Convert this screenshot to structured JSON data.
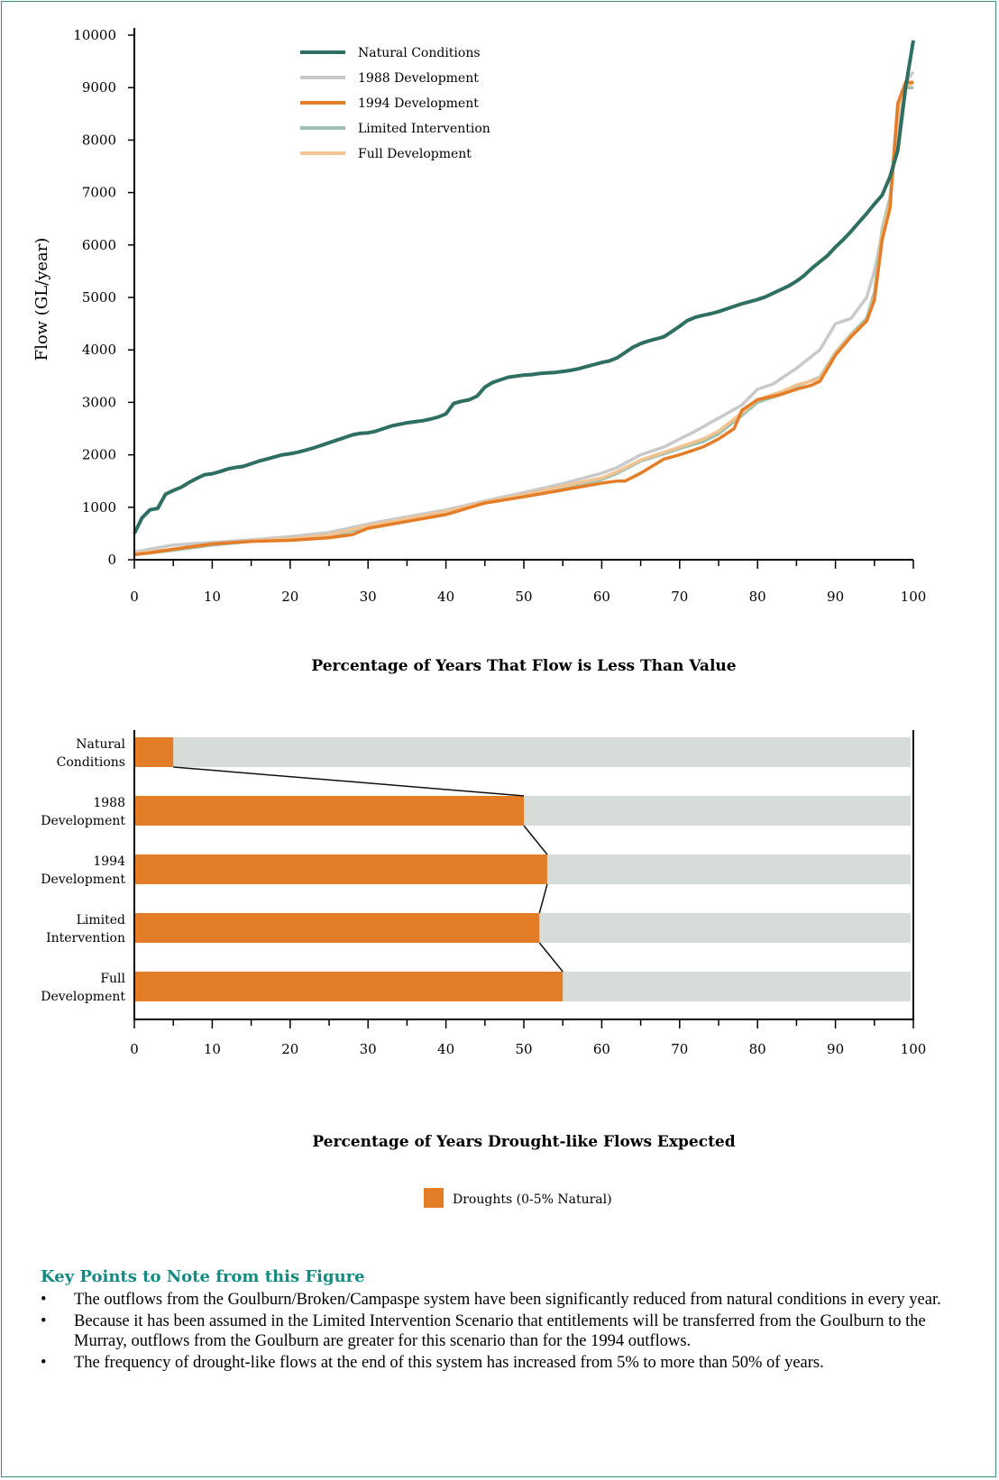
{
  "colors": {
    "natural": "#2e6f62",
    "dev1988": "#c9c9c9",
    "dev1994": "#e47d27",
    "limited": "#9fc2b0",
    "full": "#f2c390",
    "bar_orange": "#e47d27",
    "bar_grey": "#d6ddd8",
    "heading_teal": "#128a80",
    "frame": "#3f8a80"
  },
  "chart_data": [
    {
      "type": "line",
      "xlabel": "Percentage of Years That Flow is Less Than Value",
      "ylabel": "Flow (GL/year)",
      "xlim": [
        0,
        100
      ],
      "ylim": [
        0,
        10000
      ],
      "xticks": [
        "0",
        "10",
        "20",
        "30",
        "40",
        "50",
        "60",
        "70",
        "80",
        "90",
        "100"
      ],
      "yticks": [
        "0",
        "1000",
        "2000",
        "3000",
        "4000",
        "5000",
        "6000",
        "7000",
        "8000",
        "9000",
        "10000"
      ],
      "legend_position": "top-left",
      "series": [
        {
          "name": "Natural Conditions",
          "color_key": "natural",
          "x": [
            0,
            1,
            2,
            3,
            4,
            5,
            6,
            7,
            8,
            9,
            10,
            11,
            12,
            13,
            14,
            15,
            16,
            17,
            18,
            19,
            20,
            21,
            22,
            23,
            24,
            25,
            26,
            27,
            28,
            29,
            30,
            31,
            32,
            33,
            34,
            35,
            36,
            37,
            38,
            39,
            40,
            41,
            42,
            43,
            44,
            45,
            46,
            47,
            48,
            49,
            50,
            51,
            52,
            53,
            54,
            55,
            56,
            57,
            58,
            59,
            60,
            61,
            62,
            63,
            64,
            65,
            66,
            67,
            68,
            69,
            70,
            71,
            72,
            73,
            74,
            75,
            76,
            77,
            78,
            79,
            80,
            81,
            82,
            83,
            84,
            85,
            86,
            87,
            88,
            89,
            90,
            91,
            92,
            93,
            94,
            95,
            96,
            97,
            98,
            99,
            100
          ],
          "y": [
            500,
            800,
            950,
            980,
            1250,
            1320,
            1380,
            1470,
            1550,
            1620,
            1640,
            1680,
            1730,
            1760,
            1780,
            1830,
            1880,
            1920,
            1960,
            2000,
            2020,
            2050,
            2090,
            2130,
            2180,
            2230,
            2280,
            2330,
            2380,
            2410,
            2420,
            2450,
            2500,
            2550,
            2580,
            2610,
            2630,
            2650,
            2680,
            2720,
            2780,
            2980,
            3020,
            3050,
            3120,
            3290,
            3380,
            3430,
            3480,
            3500,
            3520,
            3530,
            3550,
            3560,
            3570,
            3590,
            3610,
            3640,
            3680,
            3720,
            3760,
            3790,
            3850,
            3950,
            4050,
            4120,
            4170,
            4210,
            4250,
            4350,
            4450,
            4560,
            4620,
            4660,
            4690,
            4730,
            4780,
            4830,
            4880,
            4920,
            4960,
            5010,
            5080,
            5150,
            5220,
            5310,
            5420,
            5560,
            5680,
            5800,
            5960,
            6100,
            6260,
            6430,
            6600,
            6780,
            6950,
            7300,
            7800,
            9000,
            9900
          ]
        },
        {
          "name": "1988 Development",
          "color_key": "dev1988",
          "x": [
            0,
            5,
            10,
            15,
            20,
            25,
            30,
            35,
            40,
            45,
            50,
            55,
            60,
            62,
            65,
            68,
            70,
            72,
            75,
            78,
            80,
            82,
            85,
            88,
            90,
            92,
            94,
            95,
            96,
            97,
            98,
            99,
            100
          ],
          "y": [
            150,
            280,
            330,
            380,
            440,
            520,
            680,
            820,
            950,
            1120,
            1280,
            1450,
            1650,
            1760,
            2000,
            2150,
            2300,
            2450,
            2700,
            2950,
            3250,
            3350,
            3650,
            4000,
            4500,
            4600,
            5000,
            5500,
            6200,
            6900,
            8200,
            9100,
            9300
          ]
        },
        {
          "name": "1994 Development",
          "color_key": "dev1994",
          "x": [
            0,
            2,
            5,
            10,
            15,
            20,
            25,
            28,
            30,
            35,
            40,
            45,
            50,
            55,
            60,
            62,
            63,
            65,
            68,
            70,
            73,
            75,
            77,
            78,
            80,
            83,
            85,
            87,
            88,
            90,
            92,
            94,
            95,
            96,
            97,
            98,
            99,
            100
          ],
          "y": [
            100,
            130,
            200,
            300,
            350,
            370,
            420,
            480,
            600,
            730,
            860,
            1080,
            1200,
            1330,
            1460,
            1500,
            1500,
            1650,
            1920,
            2000,
            2150,
            2300,
            2500,
            2850,
            3050,
            3150,
            3250,
            3330,
            3400,
            3900,
            4250,
            4550,
            4950,
            6100,
            6700,
            8700,
            9100,
            9100
          ]
        },
        {
          "name": "Limited Intervention",
          "color_key": "limited",
          "x": [
            0,
            5,
            10,
            15,
            20,
            25,
            30,
            35,
            40,
            45,
            50,
            55,
            60,
            62,
            65,
            68,
            70,
            73,
            75,
            78,
            80,
            83,
            85,
            88,
            90,
            92,
            94,
            95,
            96,
            97,
            98,
            99,
            100
          ],
          "y": [
            100,
            180,
            280,
            350,
            380,
            450,
            620,
            760,
            900,
            1080,
            1220,
            1380,
            1530,
            1650,
            1880,
            2020,
            2120,
            2250,
            2400,
            2750,
            3000,
            3150,
            3300,
            3480,
            3950,
            4300,
            4600,
            5100,
            6300,
            6900,
            8600,
            9000,
            9000
          ]
        },
        {
          "name": "Full Development",
          "color_key": "full",
          "x": [
            0,
            5,
            10,
            15,
            20,
            25,
            30,
            35,
            40,
            45,
            50,
            55,
            60,
            62,
            65,
            68,
            70,
            73,
            75,
            78,
            80,
            83,
            85,
            88,
            90,
            92,
            94,
            95,
            96,
            97,
            98,
            99,
            100
          ],
          "y": [
            120,
            200,
            300,
            360,
            400,
            470,
            650,
            780,
            920,
            1100,
            1240,
            1400,
            1560,
            1680,
            1900,
            2050,
            2150,
            2300,
            2450,
            2800,
            3050,
            3200,
            3330,
            3450,
            3930,
            4280,
            4550,
            5000,
            6200,
            6800,
            8500,
            9000,
            9100
          ]
        }
      ]
    },
    {
      "type": "bar",
      "orientation": "horizontal",
      "xlabel": "Percentage of Years Drought-like Flows Expected",
      "xlim": [
        0,
        100
      ],
      "xticks": [
        "0",
        "10",
        "20",
        "30",
        "40",
        "50",
        "60",
        "70",
        "80",
        "90",
        "100"
      ],
      "categories": [
        [
          "Natural",
          "Conditions"
        ],
        [
          "1988",
          "Development"
        ],
        [
          "1994",
          "Development"
        ],
        [
          "Limited",
          "Intervention"
        ],
        [
          "Full",
          "Development"
        ]
      ],
      "values": [
        5,
        50,
        53,
        52,
        55
      ],
      "legend": "Droughts (0-5% Natural)"
    }
  ],
  "key_points": {
    "heading": "Key Points to Note from this Figure",
    "bullet": "•",
    "items": [
      "The outflows from the Goulburn/Broken/Campaspe system have been significantly reduced from natural conditions in every year.",
      "Because it has been assumed in the Limited Intervention Scenario that entitlements will be transferred from the Goulburn to the Murray, outflows from the Goulburn are greater for this scenario than for the 1994 outflows.",
      "The frequency of drought-like flows at the end of this system has increased from 5% to more than 50% of years."
    ]
  }
}
